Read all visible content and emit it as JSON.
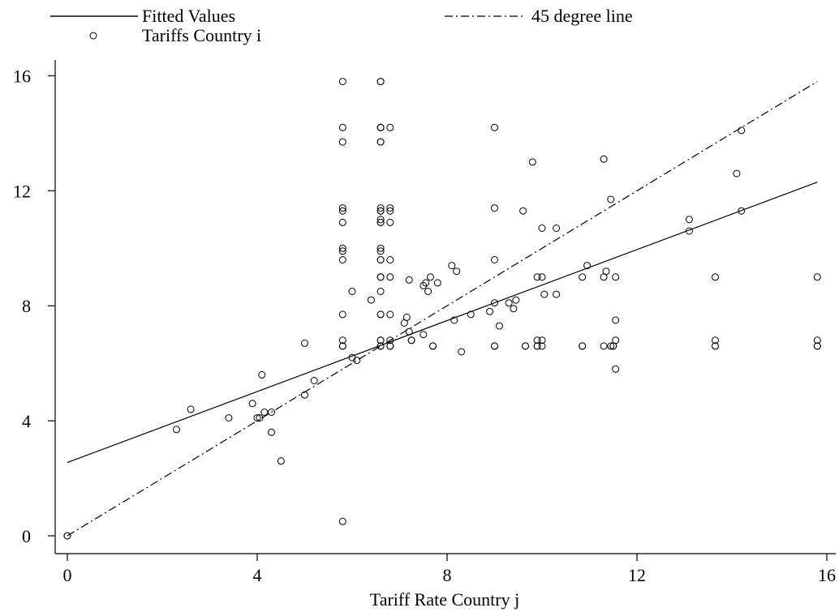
{
  "chart_data": {
    "type": "scatter",
    "title": "",
    "xlabel": "Tariff Rate Country j",
    "ylabel": "",
    "xlim": [
      -0.4,
      16.4
    ],
    "ylim": [
      -0.6,
      16.6
    ],
    "xticks": [
      "0",
      "4",
      "8",
      "12",
      "16"
    ],
    "yticks": [
      "0",
      "4",
      "8",
      "12",
      "16"
    ],
    "xtick_values": [
      0,
      4,
      8,
      12,
      16
    ],
    "ytick_values": [
      0,
      4,
      8,
      12,
      16
    ],
    "grid": false,
    "legend_placement": "top",
    "legend": [
      {
        "label": "Fitted Values",
        "style": "solid"
      },
      {
        "label": "45 degree line",
        "style": "dashdot"
      },
      {
        "label": "Tariffs Country i",
        "style": "marker"
      }
    ],
    "series": [
      {
        "name": "Fitted Values",
        "kind": "line",
        "points": [
          [
            0,
            2.55
          ],
          [
            15.8,
            12.3
          ]
        ]
      },
      {
        "name": "45 degree line",
        "kind": "line",
        "points": [
          [
            0,
            0
          ],
          [
            15.8,
            15.8
          ]
        ]
      },
      {
        "name": "Tariffs Country i",
        "kind": "scatter",
        "points": [
          [
            0,
            0
          ],
          [
            0,
            0
          ],
          [
            2.3,
            3.7
          ],
          [
            2.6,
            4.4
          ],
          [
            3.4,
            4.1
          ],
          [
            3.9,
            4.6
          ],
          [
            4.0,
            4.1
          ],
          [
            4.05,
            4.1
          ],
          [
            4.1,
            5.6
          ],
          [
            4.15,
            4.3
          ],
          [
            4.3,
            4.3
          ],
          [
            4.3,
            3.6
          ],
          [
            4.5,
            2.6
          ],
          [
            5.0,
            6.7
          ],
          [
            5.0,
            4.9
          ],
          [
            5.2,
            5.4
          ],
          [
            5.8,
            15.8
          ],
          [
            5.8,
            14.2
          ],
          [
            5.8,
            13.7
          ],
          [
            5.8,
            11.4
          ],
          [
            5.8,
            11.3
          ],
          [
            5.8,
            10.9
          ],
          [
            5.8,
            10.0
          ],
          [
            5.8,
            9.9
          ],
          [
            5.8,
            9.6
          ],
          [
            5.8,
            7.7
          ],
          [
            5.8,
            6.8
          ],
          [
            5.8,
            6.6
          ],
          [
            5.8,
            6.6
          ],
          [
            5.8,
            0.5
          ],
          [
            6.0,
            8.5
          ],
          [
            6.0,
            6.2
          ],
          [
            6.1,
            6.1
          ],
          [
            6.4,
            8.2
          ],
          [
            6.6,
            15.8
          ],
          [
            6.6,
            15.8
          ],
          [
            6.6,
            14.2
          ],
          [
            6.6,
            14.2
          ],
          [
            6.6,
            14.2
          ],
          [
            6.6,
            13.7
          ],
          [
            6.6,
            13.7
          ],
          [
            6.6,
            11.4
          ],
          [
            6.6,
            11.3
          ],
          [
            6.6,
            11.3
          ],
          [
            6.6,
            11.0
          ],
          [
            6.6,
            10.9
          ],
          [
            6.6,
            10.9
          ],
          [
            6.6,
            10.0
          ],
          [
            6.6,
            9.9
          ],
          [
            6.6,
            9.6
          ],
          [
            6.6,
            9.6
          ],
          [
            6.6,
            9.0
          ],
          [
            6.6,
            9.0
          ],
          [
            6.6,
            8.5
          ],
          [
            6.6,
            7.7
          ],
          [
            6.6,
            7.7
          ],
          [
            6.6,
            6.8
          ],
          [
            6.6,
            6.8
          ],
          [
            6.6,
            6.6
          ],
          [
            6.6,
            6.6
          ],
          [
            6.8,
            14.2
          ],
          [
            6.8,
            11.4
          ],
          [
            6.8,
            11.3
          ],
          [
            6.8,
            10.9
          ],
          [
            6.8,
            9.6
          ],
          [
            6.8,
            9.0
          ],
          [
            6.8,
            7.7
          ],
          [
            6.8,
            6.8
          ],
          [
            6.8,
            6.6
          ],
          [
            6.8,
            6.6
          ],
          [
            7.1,
            7.4
          ],
          [
            7.15,
            7.6
          ],
          [
            7.2,
            8.9
          ],
          [
            7.2,
            7.1
          ],
          [
            7.25,
            6.8
          ],
          [
            7.25,
            6.8
          ],
          [
            7.5,
            8.7
          ],
          [
            7.5,
            7.0
          ],
          [
            7.55,
            8.8
          ],
          [
            7.6,
            8.5
          ],
          [
            7.65,
            9.0
          ],
          [
            7.7,
            6.6
          ],
          [
            7.7,
            6.6
          ],
          [
            7.8,
            8.8
          ],
          [
            8.1,
            9.4
          ],
          [
            8.15,
            7.5
          ],
          [
            8.2,
            9.2
          ],
          [
            8.3,
            6.4
          ],
          [
            8.5,
            7.7
          ],
          [
            8.9,
            7.8
          ],
          [
            9.0,
            14.2
          ],
          [
            9.0,
            11.4
          ],
          [
            9.0,
            9.6
          ],
          [
            9.0,
            8.1
          ],
          [
            9.0,
            6.6
          ],
          [
            9.0,
            6.6
          ],
          [
            9.1,
            7.3
          ],
          [
            9.3,
            8.1
          ],
          [
            9.4,
            7.9
          ],
          [
            9.45,
            8.2
          ],
          [
            9.6,
            11.3
          ],
          [
            9.65,
            6.6
          ],
          [
            9.65,
            6.6
          ],
          [
            9.8,
            13.0
          ],
          [
            9.9,
            9.0
          ],
          [
            9.9,
            6.8
          ],
          [
            9.9,
            6.6
          ],
          [
            9.9,
            6.6
          ],
          [
            10.0,
            10.7
          ],
          [
            10.0,
            9.0
          ],
          [
            10.0,
            6.8
          ],
          [
            10.0,
            6.6
          ],
          [
            10.05,
            8.4
          ],
          [
            10.3,
            10.7
          ],
          [
            10.3,
            8.4
          ],
          [
            10.85,
            9.0
          ],
          [
            10.85,
            6.6
          ],
          [
            10.85,
            6.6
          ],
          [
            10.95,
            9.4
          ],
          [
            11.3,
            13.1
          ],
          [
            11.3,
            9.0
          ],
          [
            11.3,
            6.6
          ],
          [
            11.35,
            9.2
          ],
          [
            11.45,
            11.7
          ],
          [
            11.45,
            6.6
          ],
          [
            11.5,
            6.6
          ],
          [
            11.5,
            6.6
          ],
          [
            11.55,
            9.0
          ],
          [
            11.55,
            7.5
          ],
          [
            11.55,
            6.8
          ],
          [
            11.55,
            5.8
          ],
          [
            13.1,
            11.0
          ],
          [
            13.1,
            10.6
          ],
          [
            13.65,
            9.0
          ],
          [
            13.65,
            6.8
          ],
          [
            13.65,
            6.6
          ],
          [
            13.65,
            6.6
          ],
          [
            14.1,
            12.6
          ],
          [
            14.2,
            14.1
          ],
          [
            14.2,
            11.3
          ],
          [
            15.8,
            9.0
          ],
          [
            15.8,
            6.8
          ],
          [
            15.8,
            6.6
          ],
          [
            15.8,
            6.6
          ]
        ]
      }
    ]
  }
}
